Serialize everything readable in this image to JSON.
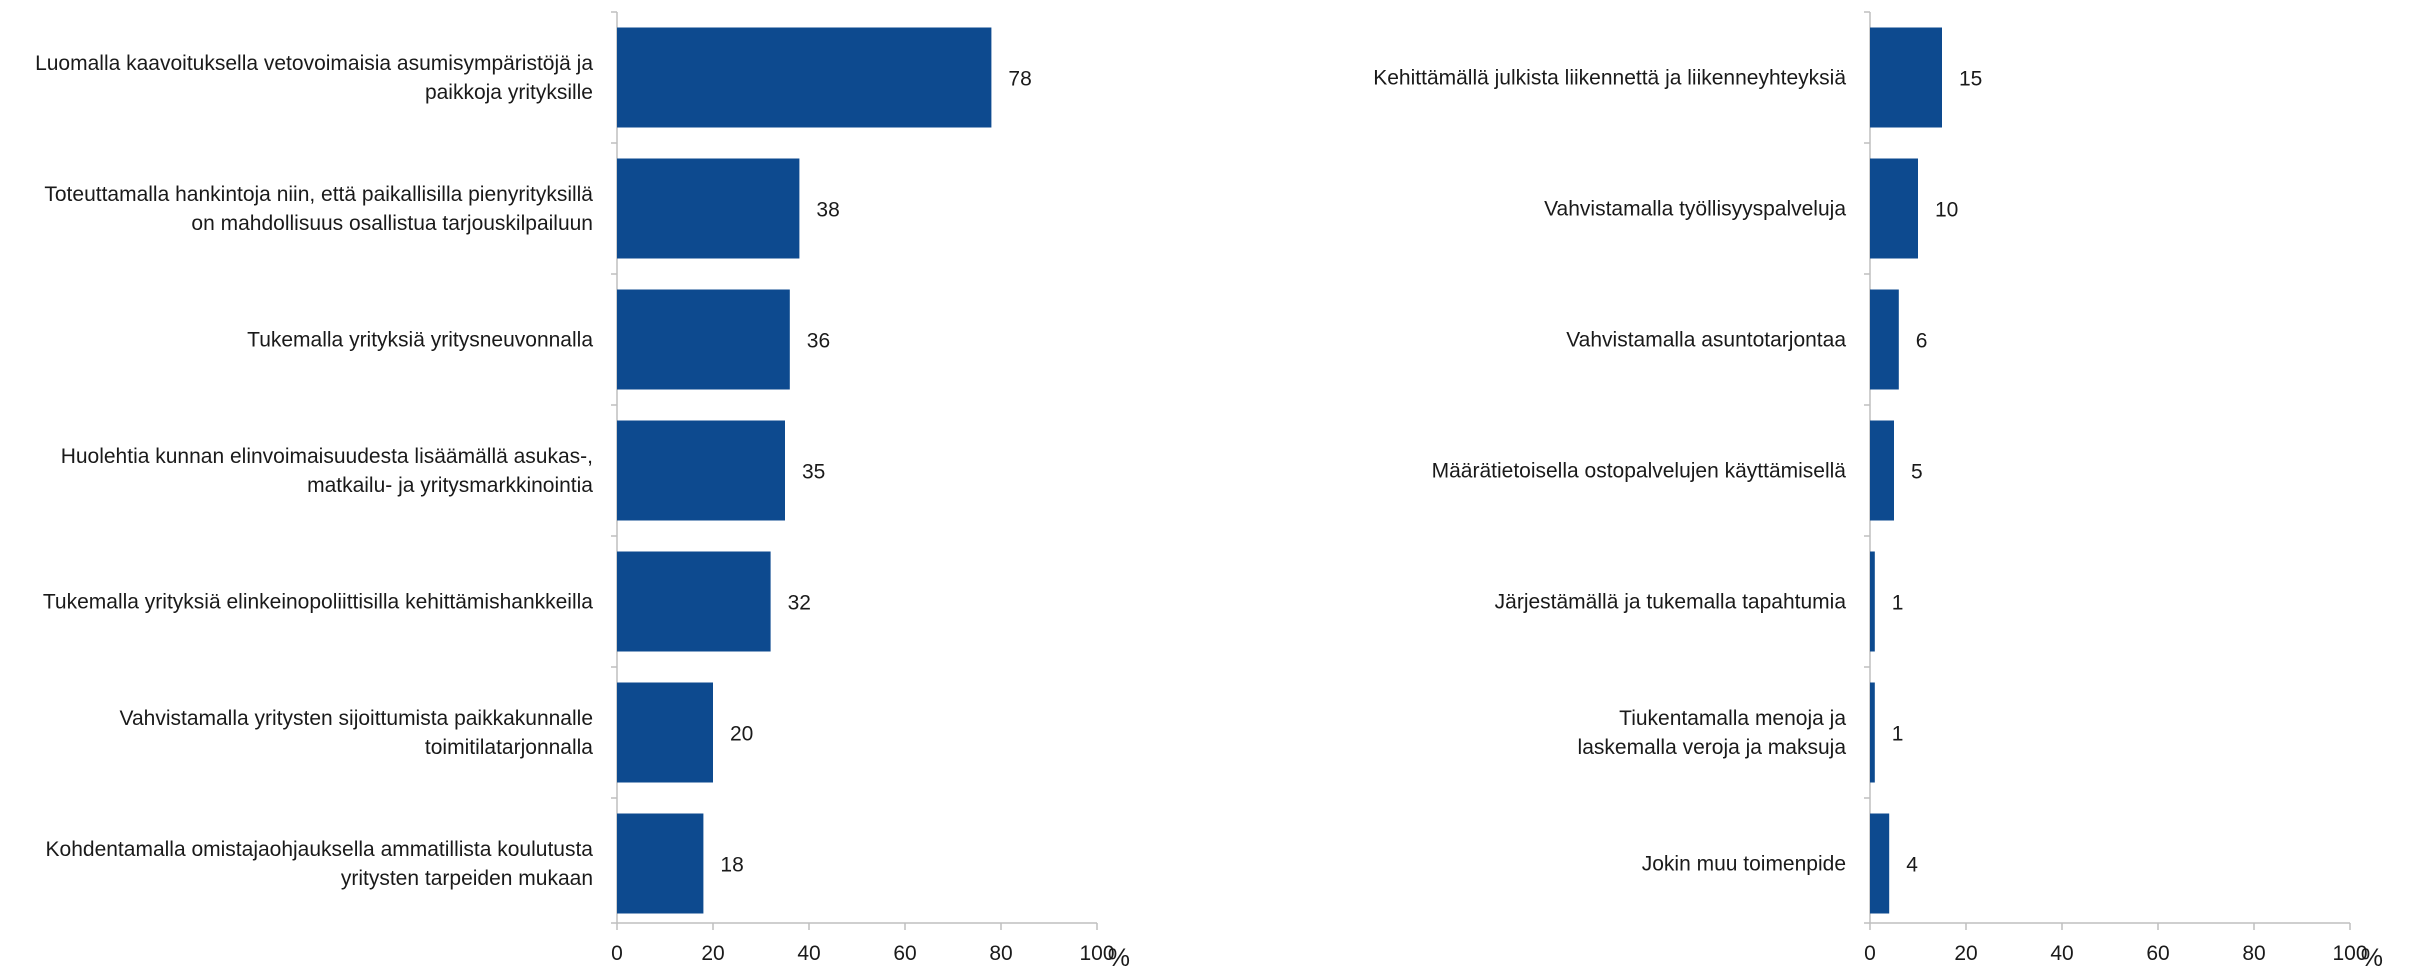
{
  "chart_data": [
    {
      "type": "bar",
      "orientation": "horizontal",
      "categories": [
        [
          "Luomalla kaavoituksella vetovoimaisia asumisympäristöjä ja",
          "paikkoja yrityksille"
        ],
        [
          "Toteuttamalla hankintoja niin, että paikallisilla pienyrityksillä",
          "on mahdollisuus osallistua tarjouskilpailuun"
        ],
        [
          "Tukemalla yrityksiä yritysneuvonnalla"
        ],
        [
          "Huolehtia kunnan elinvoimaisuudesta lisäämällä asukas-,",
          "matkailu- ja yritysmarkkinointia"
        ],
        [
          "Tukemalla yrityksiä elinkeinopoliittisilla kehittämishankkeilla"
        ],
        [
          "Vahvistamalla yritysten sijoittumista paikkakunnalle",
          "toimitilatarjonnalla"
        ],
        [
          "Kohdentamalla omistajaohjauksella ammatillista koulutusta",
          "yritysten tarpeiden mukaan"
        ]
      ],
      "values": [
        78,
        38,
        36,
        35,
        32,
        20,
        18
      ],
      "value_labels": [
        "78",
        "38",
        "36",
        "35",
        "32",
        "20",
        "18"
      ],
      "xlim": [
        0,
        100
      ],
      "xticks": [
        "0",
        "20",
        "40",
        "60",
        "80",
        "100"
      ],
      "xlabel": "%",
      "grid": false,
      "color": "#0d4a8f"
    },
    {
      "type": "bar",
      "orientation": "horizontal",
      "categories": [
        [
          "Kehittämällä julkista liikennettä ja liikenneyhteyksiä"
        ],
        [
          "Vahvistamalla työllisyyspalveluja"
        ],
        [
          "Vahvistamalla asuntotarjontaa"
        ],
        [
          "Määrätietoisella ostopalvelujen käyttämisellä"
        ],
        [
          "Järjestämällä ja tukemalla tapahtumia"
        ],
        [
          "Tiukentamalla menoja ja",
          "laskemalla veroja ja maksuja"
        ],
        [
          "Jokin muu toimenpide"
        ]
      ],
      "values": [
        15,
        10,
        6,
        5,
        1,
        1,
        4
      ],
      "value_labels": [
        "15",
        "10",
        "6",
        "5",
        "1",
        "1",
        "4"
      ],
      "xlim": [
        0,
        100
      ],
      "xticks": [
        "0",
        "20",
        "40",
        "60",
        "80",
        "100"
      ],
      "xlabel": "%",
      "grid": false,
      "color": "#0d4a8f"
    }
  ]
}
